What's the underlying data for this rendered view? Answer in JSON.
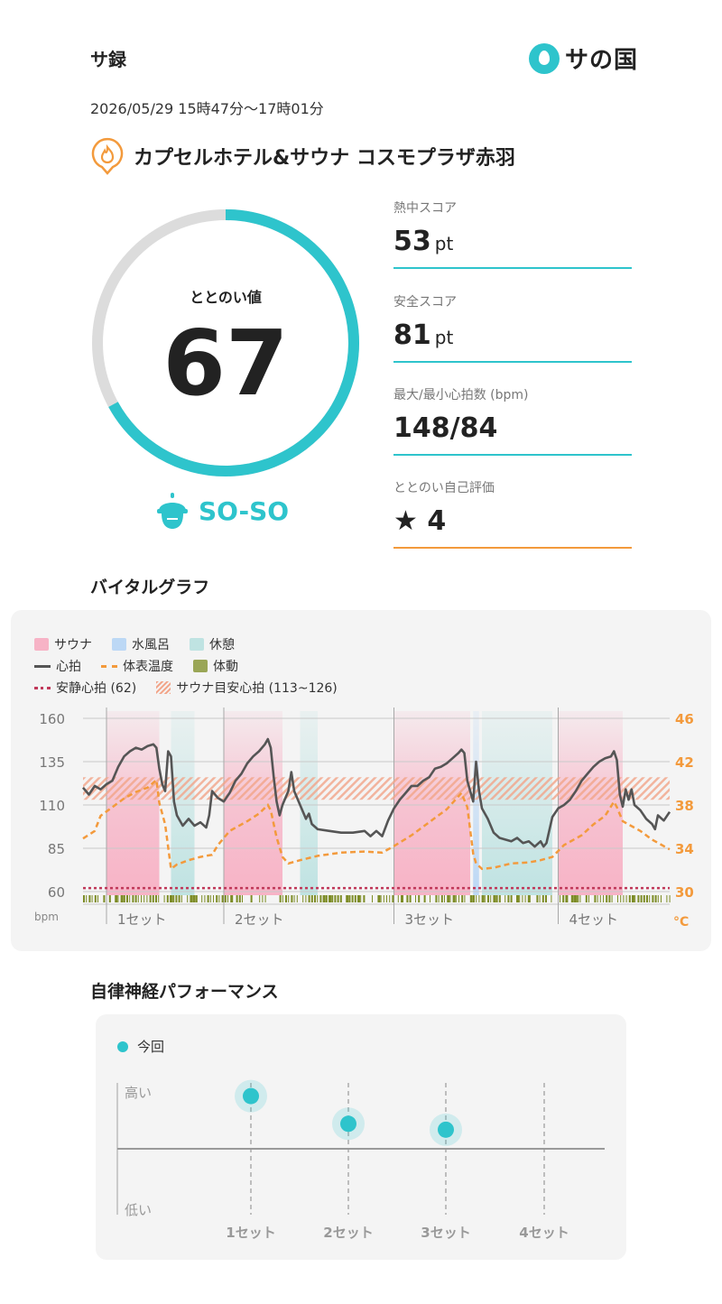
{
  "header": {
    "title": "サ録",
    "logo_text": "サの国"
  },
  "session": {
    "datetime": "2026/05/29 15時47分〜17時01分"
  },
  "facility": {
    "name": "カプセルホテル&サウナ コスモプラザ赤羽"
  },
  "totonoi": {
    "label": "ととのい値",
    "value": "67",
    "fraction": 0.67,
    "mood": "SO-SO"
  },
  "stats": [
    {
      "label": "熱中スコア",
      "value": "53",
      "unit": "pt"
    },
    {
      "label": "安全スコア",
      "value": "81",
      "unit": "pt"
    },
    {
      "label": "最大/最小心拍数 (bpm)",
      "value": "148/84",
      "unit": ""
    },
    {
      "label": "ととのい自己評価",
      "value": "★ 4",
      "unit": ""
    }
  ],
  "vital": {
    "title": "バイタルグラフ",
    "legend": {
      "sauna": "サウナ",
      "water": "水風呂",
      "rest": "休憩",
      "hr": "心拍",
      "temp": "体表温度",
      "motion": "体動",
      "rest_hr": "安静心拍 (62)",
      "target_hr": "サウナ目安心拍 (113~126)"
    },
    "colors": {
      "sauna": "#f7b3c6",
      "water": "#bcd8f5",
      "rest": "#bfe3e2",
      "hr": "#555555",
      "temp": "#f39a3c",
      "motion": "#8a9a2e",
      "rest_hr": "#c0395a",
      "target": "#f2a488"
    },
    "y_left_ticks": [
      "160",
      "135",
      "110",
      "85",
      "60"
    ],
    "y_left_unit": "bpm",
    "y_right_ticks": [
      "46",
      "42",
      "38",
      "34",
      "30"
    ],
    "y_right_unit": "°C",
    "x_sets": [
      "1セット",
      "2セット",
      "3セット",
      "4セット"
    ]
  },
  "chart_data": {
    "type": "line",
    "ylim_left": [
      60,
      160
    ],
    "ylim_right": [
      30,
      46
    ],
    "rest_hr": 62,
    "target_hr": [
      113,
      126
    ],
    "intervals": [
      {
        "kind": "sauna",
        "start": 0.04,
        "end": 0.13
      },
      {
        "kind": "rest",
        "start": 0.15,
        "end": 0.19
      },
      {
        "kind": "sauna",
        "start": 0.24,
        "end": 0.34
      },
      {
        "kind": "rest",
        "start": 0.37,
        "end": 0.4
      },
      {
        "kind": "sauna",
        "start": 0.53,
        "end": 0.66
      },
      {
        "kind": "water",
        "start": 0.665,
        "end": 0.675
      },
      {
        "kind": "rest",
        "start": 0.68,
        "end": 0.8
      },
      {
        "kind": "sauna",
        "start": 0.81,
        "end": 0.92
      }
    ],
    "series": [
      {
        "name": "心拍",
        "axis": "left",
        "points": [
          [
            0.0,
            120
          ],
          [
            0.01,
            116
          ],
          [
            0.02,
            121
          ],
          [
            0.03,
            119
          ],
          [
            0.04,
            122
          ],
          [
            0.05,
            124
          ],
          [
            0.06,
            132
          ],
          [
            0.07,
            138
          ],
          [
            0.08,
            141
          ],
          [
            0.09,
            143
          ],
          [
            0.1,
            142
          ],
          [
            0.11,
            144
          ],
          [
            0.12,
            145
          ],
          [
            0.125,
            143
          ],
          [
            0.13,
            131
          ],
          [
            0.135,
            122
          ],
          [
            0.14,
            118
          ],
          [
            0.145,
            141
          ],
          [
            0.15,
            138
          ],
          [
            0.155,
            112
          ],
          [
            0.16,
            104
          ],
          [
            0.17,
            98
          ],
          [
            0.18,
            102
          ],
          [
            0.19,
            98
          ],
          [
            0.2,
            100
          ],
          [
            0.21,
            97
          ],
          [
            0.215,
            104
          ],
          [
            0.22,
            118
          ],
          [
            0.23,
            114
          ],
          [
            0.24,
            112
          ],
          [
            0.25,
            117
          ],
          [
            0.26,
            124
          ],
          [
            0.27,
            128
          ],
          [
            0.28,
            134
          ],
          [
            0.29,
            138
          ],
          [
            0.3,
            141
          ],
          [
            0.31,
            145
          ],
          [
            0.315,
            148
          ],
          [
            0.32,
            143
          ],
          [
            0.325,
            126
          ],
          [
            0.33,
            112
          ],
          [
            0.335,
            104
          ],
          [
            0.34,
            110
          ],
          [
            0.35,
            118
          ],
          [
            0.355,
            129
          ],
          [
            0.36,
            118
          ],
          [
            0.37,
            110
          ],
          [
            0.38,
            102
          ],
          [
            0.385,
            105
          ],
          [
            0.39,
            99
          ],
          [
            0.4,
            96
          ],
          [
            0.42,
            95
          ],
          [
            0.44,
            94
          ],
          [
            0.46,
            94
          ],
          [
            0.48,
            95
          ],
          [
            0.49,
            92
          ],
          [
            0.5,
            95
          ],
          [
            0.51,
            92
          ],
          [
            0.52,
            101
          ],
          [
            0.53,
            108
          ],
          [
            0.54,
            113
          ],
          [
            0.55,
            117
          ],
          [
            0.56,
            121
          ],
          [
            0.57,
            121
          ],
          [
            0.58,
            124
          ],
          [
            0.59,
            126
          ],
          [
            0.6,
            131
          ],
          [
            0.61,
            132
          ],
          [
            0.62,
            134
          ],
          [
            0.63,
            137
          ],
          [
            0.64,
            140
          ],
          [
            0.645,
            142
          ],
          [
            0.65,
            140
          ],
          [
            0.655,
            124
          ],
          [
            0.66,
            118
          ],
          [
            0.665,
            112
          ],
          [
            0.67,
            135
          ],
          [
            0.675,
            118
          ],
          [
            0.68,
            108
          ],
          [
            0.69,
            102
          ],
          [
            0.7,
            94
          ],
          [
            0.71,
            91
          ],
          [
            0.72,
            90
          ],
          [
            0.73,
            89
          ],
          [
            0.74,
            91
          ],
          [
            0.75,
            88
          ],
          [
            0.76,
            89
          ],
          [
            0.77,
            86
          ],
          [
            0.78,
            89
          ],
          [
            0.785,
            86
          ],
          [
            0.79,
            88
          ],
          [
            0.8,
            103
          ],
          [
            0.81,
            108
          ],
          [
            0.82,
            110
          ],
          [
            0.83,
            113
          ],
          [
            0.84,
            118
          ],
          [
            0.85,
            124
          ],
          [
            0.86,
            128
          ],
          [
            0.87,
            132
          ],
          [
            0.88,
            135
          ],
          [
            0.89,
            137
          ],
          [
            0.9,
            138
          ],
          [
            0.905,
            141
          ],
          [
            0.91,
            136
          ],
          [
            0.915,
            116
          ],
          [
            0.92,
            109
          ],
          [
            0.925,
            119
          ],
          [
            0.93,
            113
          ],
          [
            0.935,
            119
          ],
          [
            0.94,
            110
          ],
          [
            0.95,
            107
          ],
          [
            0.96,
            102
          ],
          [
            0.97,
            99
          ],
          [
            0.975,
            96
          ],
          [
            0.98,
            104
          ],
          [
            0.99,
            101
          ],
          [
            1.0,
            106
          ]
        ]
      },
      {
        "name": "体表温度",
        "axis": "right",
        "points": [
          [
            0.0,
            34.9
          ],
          [
            0.02,
            35.6
          ],
          [
            0.03,
            37.0
          ],
          [
            0.05,
            37.8
          ],
          [
            0.07,
            38.6
          ],
          [
            0.09,
            39.2
          ],
          [
            0.11,
            39.6
          ],
          [
            0.125,
            40.3
          ],
          [
            0.13,
            38.2
          ],
          [
            0.14,
            36.2
          ],
          [
            0.15,
            32.1
          ],
          [
            0.16,
            32.5
          ],
          [
            0.18,
            32.9
          ],
          [
            0.2,
            33.2
          ],
          [
            0.22,
            33.4
          ],
          [
            0.23,
            34.3
          ],
          [
            0.25,
            35.6
          ],
          [
            0.28,
            36.5
          ],
          [
            0.3,
            37.2
          ],
          [
            0.315,
            38.0
          ],
          [
            0.32,
            37.5
          ],
          [
            0.33,
            35.0
          ],
          [
            0.34,
            33.2
          ],
          [
            0.35,
            32.6
          ],
          [
            0.37,
            32.9
          ],
          [
            0.4,
            33.3
          ],
          [
            0.44,
            33.6
          ],
          [
            0.48,
            33.7
          ],
          [
            0.51,
            33.6
          ],
          [
            0.53,
            34.2
          ],
          [
            0.56,
            35.2
          ],
          [
            0.59,
            36.4
          ],
          [
            0.62,
            37.6
          ],
          [
            0.645,
            39.1
          ],
          [
            0.655,
            37.8
          ],
          [
            0.665,
            33.5
          ],
          [
            0.67,
            32.6
          ],
          [
            0.68,
            32.1
          ],
          [
            0.7,
            32.2
          ],
          [
            0.73,
            32.6
          ],
          [
            0.76,
            32.7
          ],
          [
            0.78,
            32.9
          ],
          [
            0.8,
            33.2
          ],
          [
            0.82,
            34.3
          ],
          [
            0.85,
            35.2
          ],
          [
            0.87,
            36.2
          ],
          [
            0.89,
            37.0
          ],
          [
            0.905,
            38.3
          ],
          [
            0.91,
            37.8
          ],
          [
            0.92,
            36.5
          ],
          [
            0.95,
            35.6
          ],
          [
            0.97,
            34.8
          ],
          [
            1.0,
            33.9
          ]
        ]
      }
    ],
    "x_set_starts": [
      0.04,
      0.24,
      0.53,
      0.81
    ]
  },
  "autonomic": {
    "title": "自律神経パフォーマンス",
    "legend": "今回",
    "y_high": "高い",
    "y_low": "低い",
    "sets": [
      "1セット",
      "2セット",
      "3セット",
      "4セット"
    ],
    "values": [
      0.8,
      0.38,
      0.29,
      null
    ]
  }
}
